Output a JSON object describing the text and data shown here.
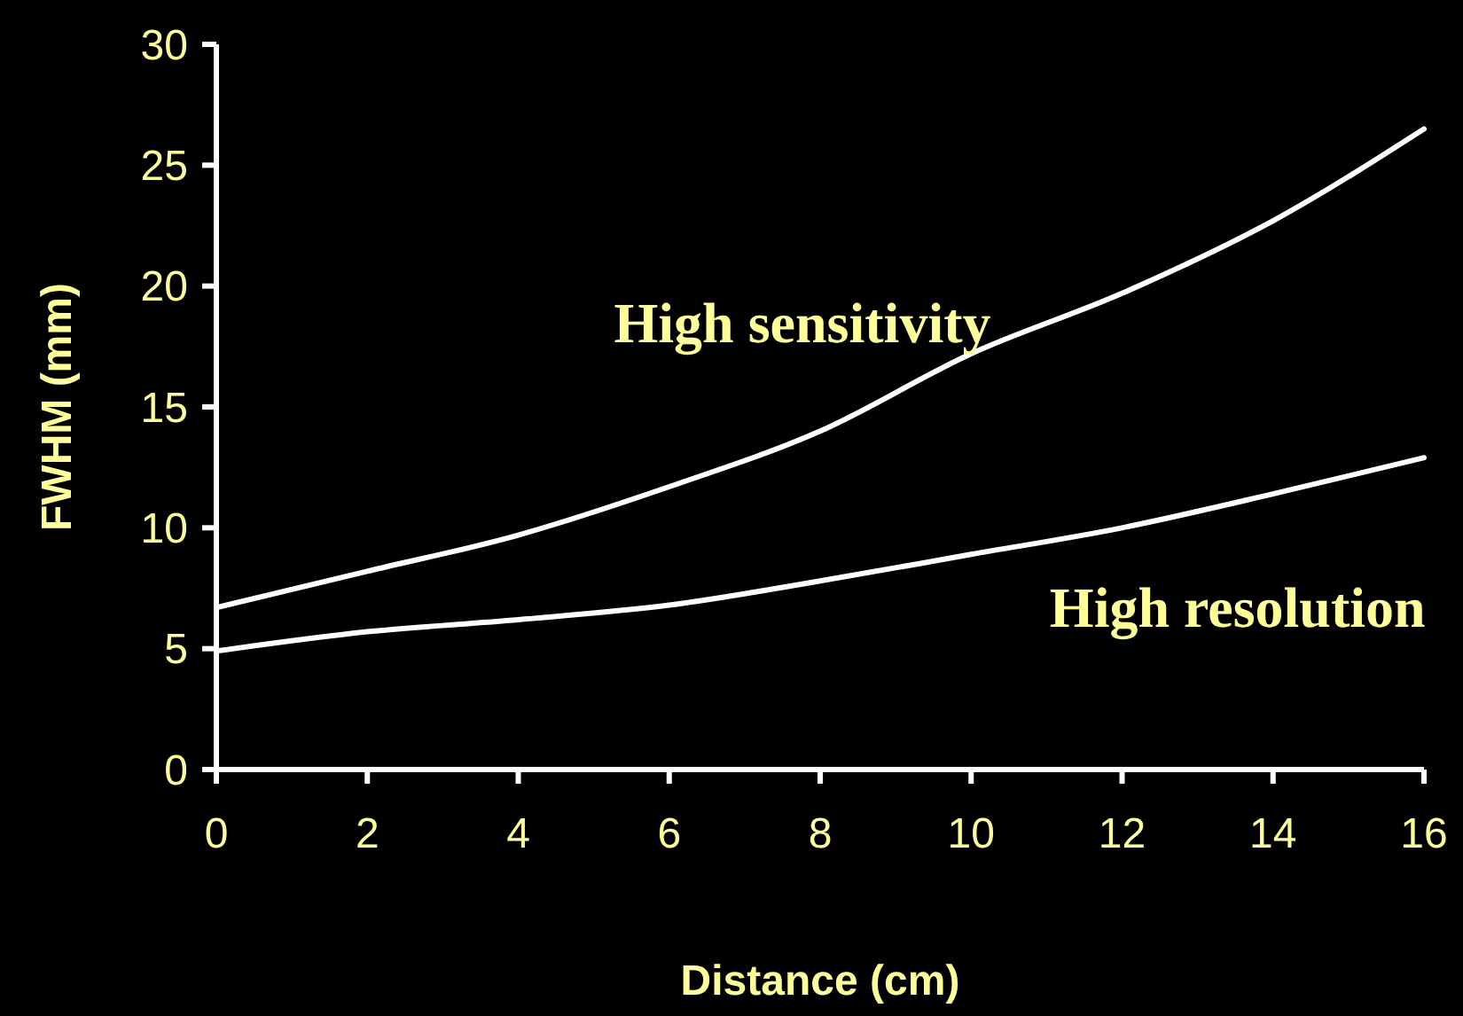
{
  "chart_data": {
    "type": "line",
    "xlabel": "Distance (cm)",
    "ylabel": "FWHM (mm)",
    "x": [
      0,
      2,
      4,
      6,
      8,
      10,
      12,
      14,
      16
    ],
    "series": [
      {
        "name": "High sensitivity",
        "color": "#ffffff",
        "values": [
          6.7,
          8.2,
          9.7,
          11.7,
          14.0,
          17.2,
          19.7,
          22.7,
          26.5
        ]
      },
      {
        "name": "High resolution",
        "color": "#ffffff",
        "values": [
          4.9,
          5.7,
          6.2,
          6.8,
          7.8,
          8.9,
          10.0,
          11.4,
          12.9
        ]
      }
    ],
    "xlim": [
      0,
      16
    ],
    "xticks": [
      0,
      2,
      4,
      6,
      8,
      10,
      12,
      14,
      16
    ],
    "ylim": [
      0,
      30
    ],
    "yticks": [
      0,
      5,
      10,
      15,
      20,
      25,
      30
    ],
    "grid": false,
    "legend": false,
    "marker": "none",
    "line_style": "solid"
  }
}
